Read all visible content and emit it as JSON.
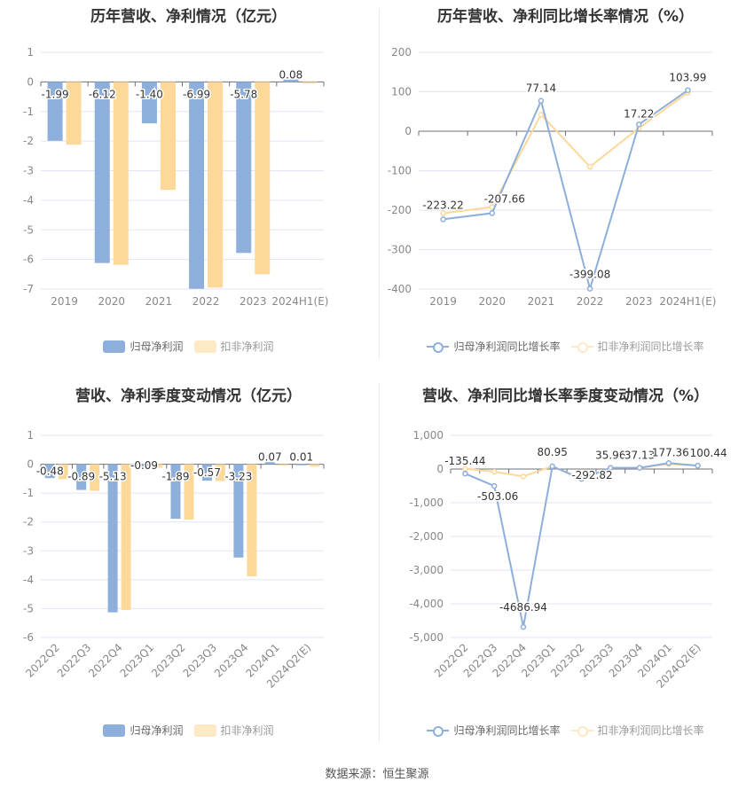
{
  "footer": {
    "source": "数据来源：恒生聚源"
  },
  "colors": {
    "blue": "#8eaedb",
    "orange": "#fdd898",
    "orange_legend": "#fde9c4",
    "grid": "#e0e6f1",
    "axis": "#6e7079",
    "tick_text": "#888888"
  },
  "chart_data": [
    {
      "id": "annual_profit",
      "type": "bar",
      "title": "历年营收、净利情况（亿元）",
      "categories": [
        "2019",
        "2020",
        "2021",
        "2022",
        "2023",
        "2024H1(E)"
      ],
      "series": [
        {
          "name": "归母净利润",
          "values": [
            -1.99,
            -6.12,
            -1.4,
            -6.99,
            -5.78,
            0.08
          ],
          "labels": [
            "-1.99",
            "-6.12",
            "-1.40",
            "-6.99",
            "-5.78",
            "0.08"
          ]
        },
        {
          "name": "扣非净利润",
          "values": [
            -2.12,
            -6.18,
            -3.65,
            -6.95,
            -6.5,
            -0.02
          ]
        }
      ],
      "yticks": [
        1,
        0,
        -1,
        -2,
        -3,
        -4,
        -5,
        -6,
        -7
      ],
      "ylim": [
        -7,
        1
      ],
      "legend_position": "bottom",
      "grid": true
    },
    {
      "id": "annual_growth",
      "type": "line",
      "title": "历年营收、净利同比增长率情况（%）",
      "categories": [
        "2019",
        "2020",
        "2021",
        "2022",
        "2023",
        "2024H1(E)"
      ],
      "series": [
        {
          "name": "归母净利润同比增长率",
          "values": [
            -223.22,
            -207.66,
            77.14,
            -399.08,
            17.22,
            103.99
          ],
          "labels": [
            "-223.22",
            "-207.66",
            "77.14",
            "-399.08",
            "17.22",
            "103.99"
          ]
        },
        {
          "name": "扣非净利润同比增长率",
          "values": [
            -208,
            -192,
            42,
            -90,
            8,
            98
          ]
        }
      ],
      "yticks": [
        200,
        100,
        0,
        -100,
        -200,
        -300,
        -400
      ],
      "ylim": [
        -400,
        200
      ],
      "legend_position": "bottom",
      "grid": true
    },
    {
      "id": "quarterly_profit",
      "type": "bar",
      "title": "营收、净利季度变动情况（亿元）",
      "categories": [
        "2022Q2",
        "2022Q3",
        "2022Q4",
        "2023Q1",
        "2023Q2",
        "2023Q3",
        "2023Q4",
        "2024Q1",
        "2024Q2(E)"
      ],
      "series": [
        {
          "name": "归母净利润",
          "values": [
            -0.48,
            -0.89,
            -5.13,
            -0.09,
            -1.89,
            -0.57,
            -3.23,
            0.07,
            0.01
          ],
          "labels": [
            "-0.48",
            "-0.89",
            "-5.13",
            "-0.09",
            "-1.89",
            "-0.57",
            "-3.23",
            "0.07",
            "0.01"
          ]
        },
        {
          "name": "扣非净利润",
          "values": [
            -0.52,
            -0.92,
            -5.05,
            -0.12,
            -1.92,
            -0.58,
            -3.88,
            -0.03,
            -0.08
          ]
        }
      ],
      "yticks": [
        1,
        0,
        -1,
        -2,
        -3,
        -4,
        -5,
        -6
      ],
      "ylim": [
        -6,
        1
      ],
      "legend_position": "bottom",
      "grid": true
    },
    {
      "id": "quarterly_growth",
      "type": "line",
      "title": "营收、净利同比增长率季度变动情况（%）",
      "categories": [
        "2022Q2",
        "2022Q3",
        "2022Q4",
        "2023Q1",
        "2023Q2",
        "2023Q3",
        "2023Q4",
        "2024Q1",
        "2024Q2(E)"
      ],
      "series": [
        {
          "name": "归母净利润同比增长率",
          "values": [
            -135.44,
            -503.06,
            -4686.94,
            80.95,
            -292.82,
            35.96,
            37.13,
            177.36,
            100.44
          ],
          "labels": [
            "-135.44",
            "-503.06",
            "-4686.94",
            "80.95",
            "-292.82",
            "35.96",
            "37.13",
            "177.36",
            "100.44"
          ]
        },
        {
          "name": "扣非净利润同比增长率",
          "values": [
            10,
            -80,
            -220,
            80,
            -292.82,
            35,
            37,
            150,
            100
          ]
        }
      ],
      "yticks": [
        1000,
        0,
        -1000,
        -2000,
        -3000,
        -4000,
        -5000
      ],
      "ytick_labels": [
        "1,000",
        "0",
        "-1,000",
        "-2,000",
        "-3,000",
        "-4,000",
        "-5,000"
      ],
      "ylim": [
        -5000,
        1000
      ],
      "legend_position": "bottom",
      "grid": true
    }
  ]
}
